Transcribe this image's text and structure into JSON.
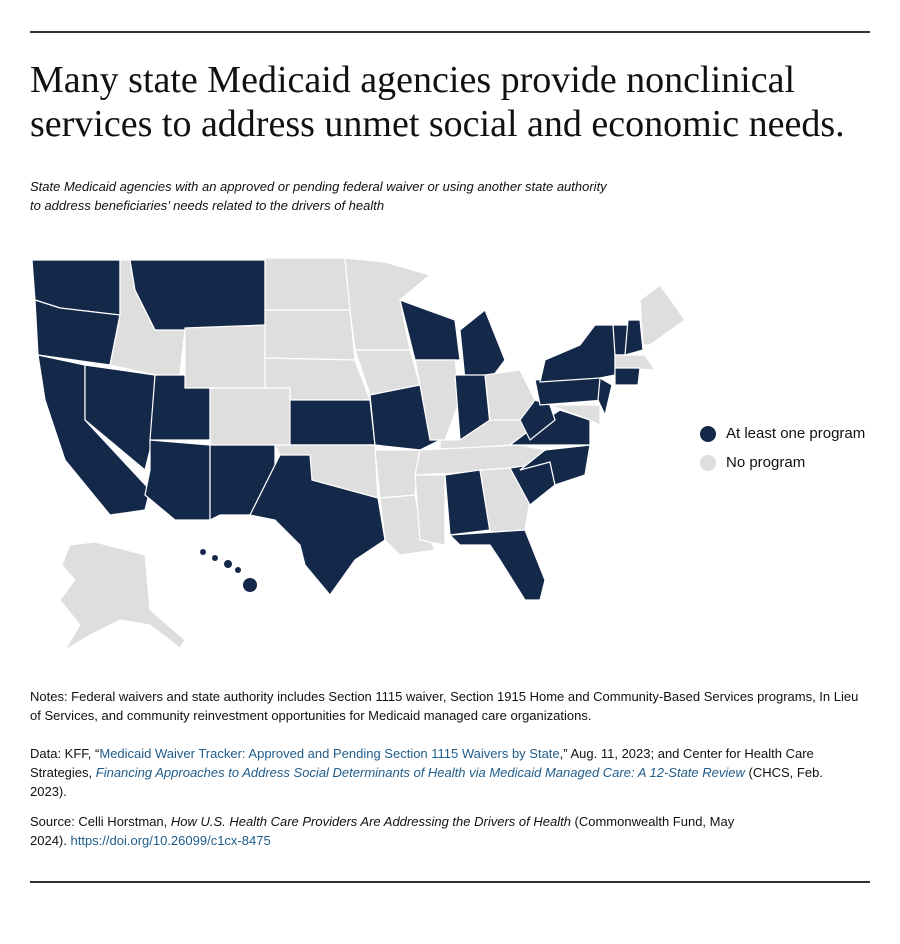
{
  "header": {
    "title": [
      "Many state Medicaid agencies provide nonclinical",
      "services to address unmet social and economic needs."
    ],
    "subtitle": [
      "State Medicaid agencies with an approved or pending federal waiver or using another state authority",
      "to address beneficiaries’ needs related to the drivers of health"
    ]
  },
  "legend": [
    {
      "label": "No program",
      "color": "#dedede"
    },
    {
      "label": "At least one program",
      "color": "#14294a"
    }
  ],
  "map": {
    "regions": [
      1,
      1,
      1,
      1,
      0,
      1,
      0,
      1,
      0,
      1,
      1,
      0,
      0,
      0,
      1,
      0,
      1,
      0,
      0,
      1,
      0,
      0,
      1,
      0,
      1,
      1,
      0,
      0,
      0,
      0,
      1,
      0,
      1,
      1,
      1,
      1,
      1,
      1,
      1,
      1,
      0,
      1,
      1,
      0,
      0,
      1
    ]
  },
  "notes": "Notes: Federal waivers and state authority includes Section 1115 waiver, Section 1915 Home and Community-Based Services programs, In Lieu of Services, and community reinvestment opportunities for Medicaid managed care organizations.",
  "data": {
    "lead": "Data: KFF, “",
    "link": "Medicaid Waiver Tracker: Approved and Pending Section 1115 Waivers by State",
    "mid": ",” Aug. 11, 2023; and Center for Health Care Strategies, ",
    "link2": "Financing Approaches to Address Social Determinants of Health via Medicaid Managed Care: A 12-State Review",
    "tail": " (CHCS, Feb. 2023)."
  },
  "source": {
    "lead": "Source: Celli Horstman, ",
    "title": "How U.S. Health Care Providers Are Addressing the Drivers of Health",
    "tail": " (Commonwealth Fund, May 2024). ",
    "doi": "https://doi.org/10.26099/c1cx-8475"
  }
}
